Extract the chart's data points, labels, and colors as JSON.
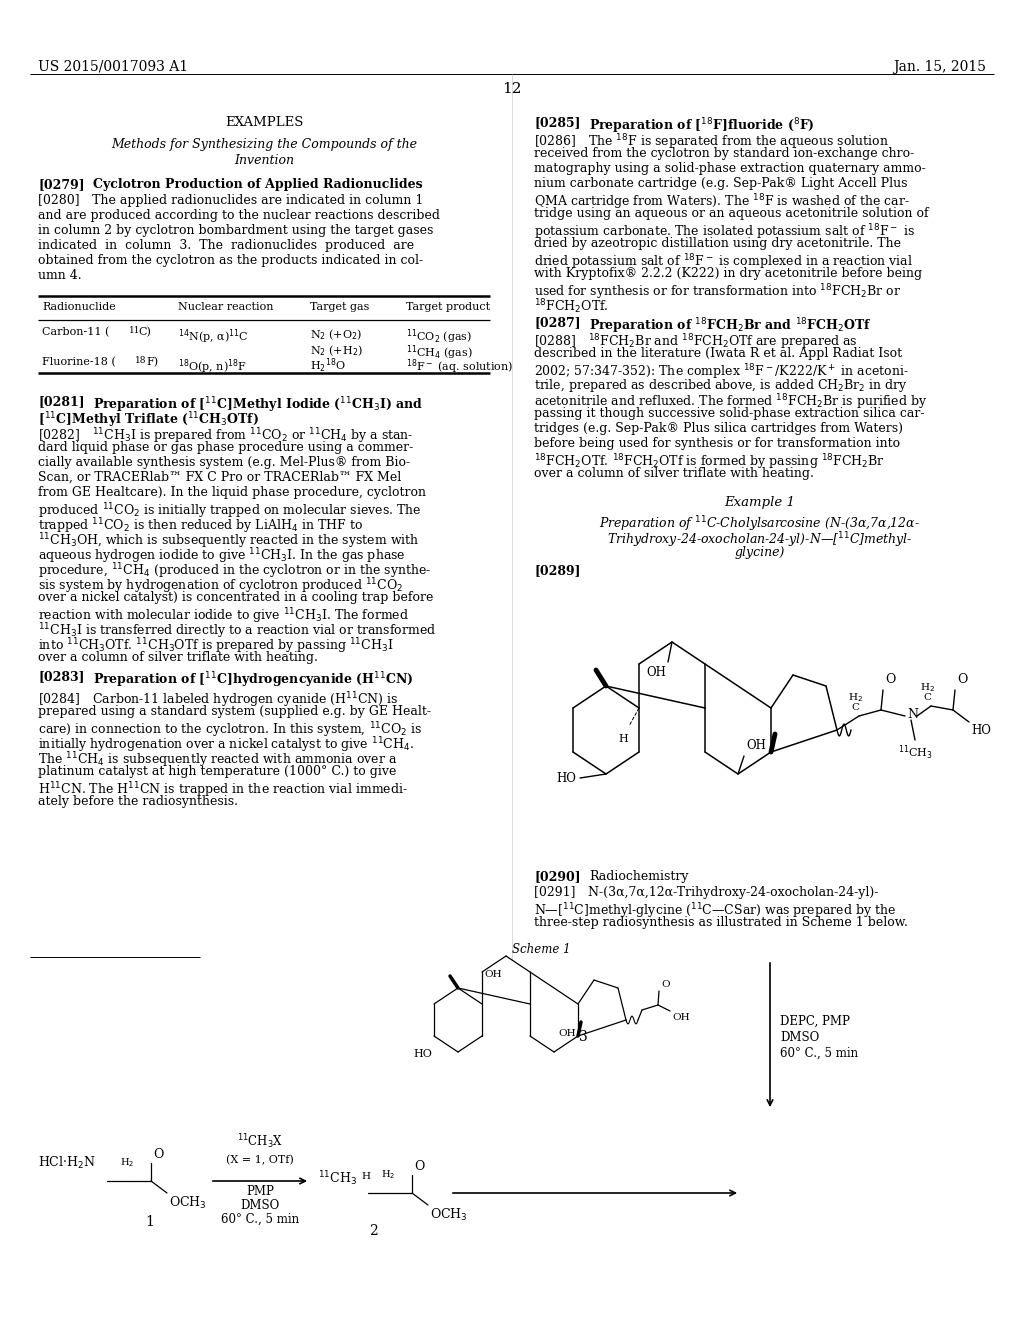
{
  "bg_color": "#ffffff",
  "header_left": "US 2015/0017093 A1",
  "header_right": "Jan. 15, 2015",
  "page_number": "12"
}
